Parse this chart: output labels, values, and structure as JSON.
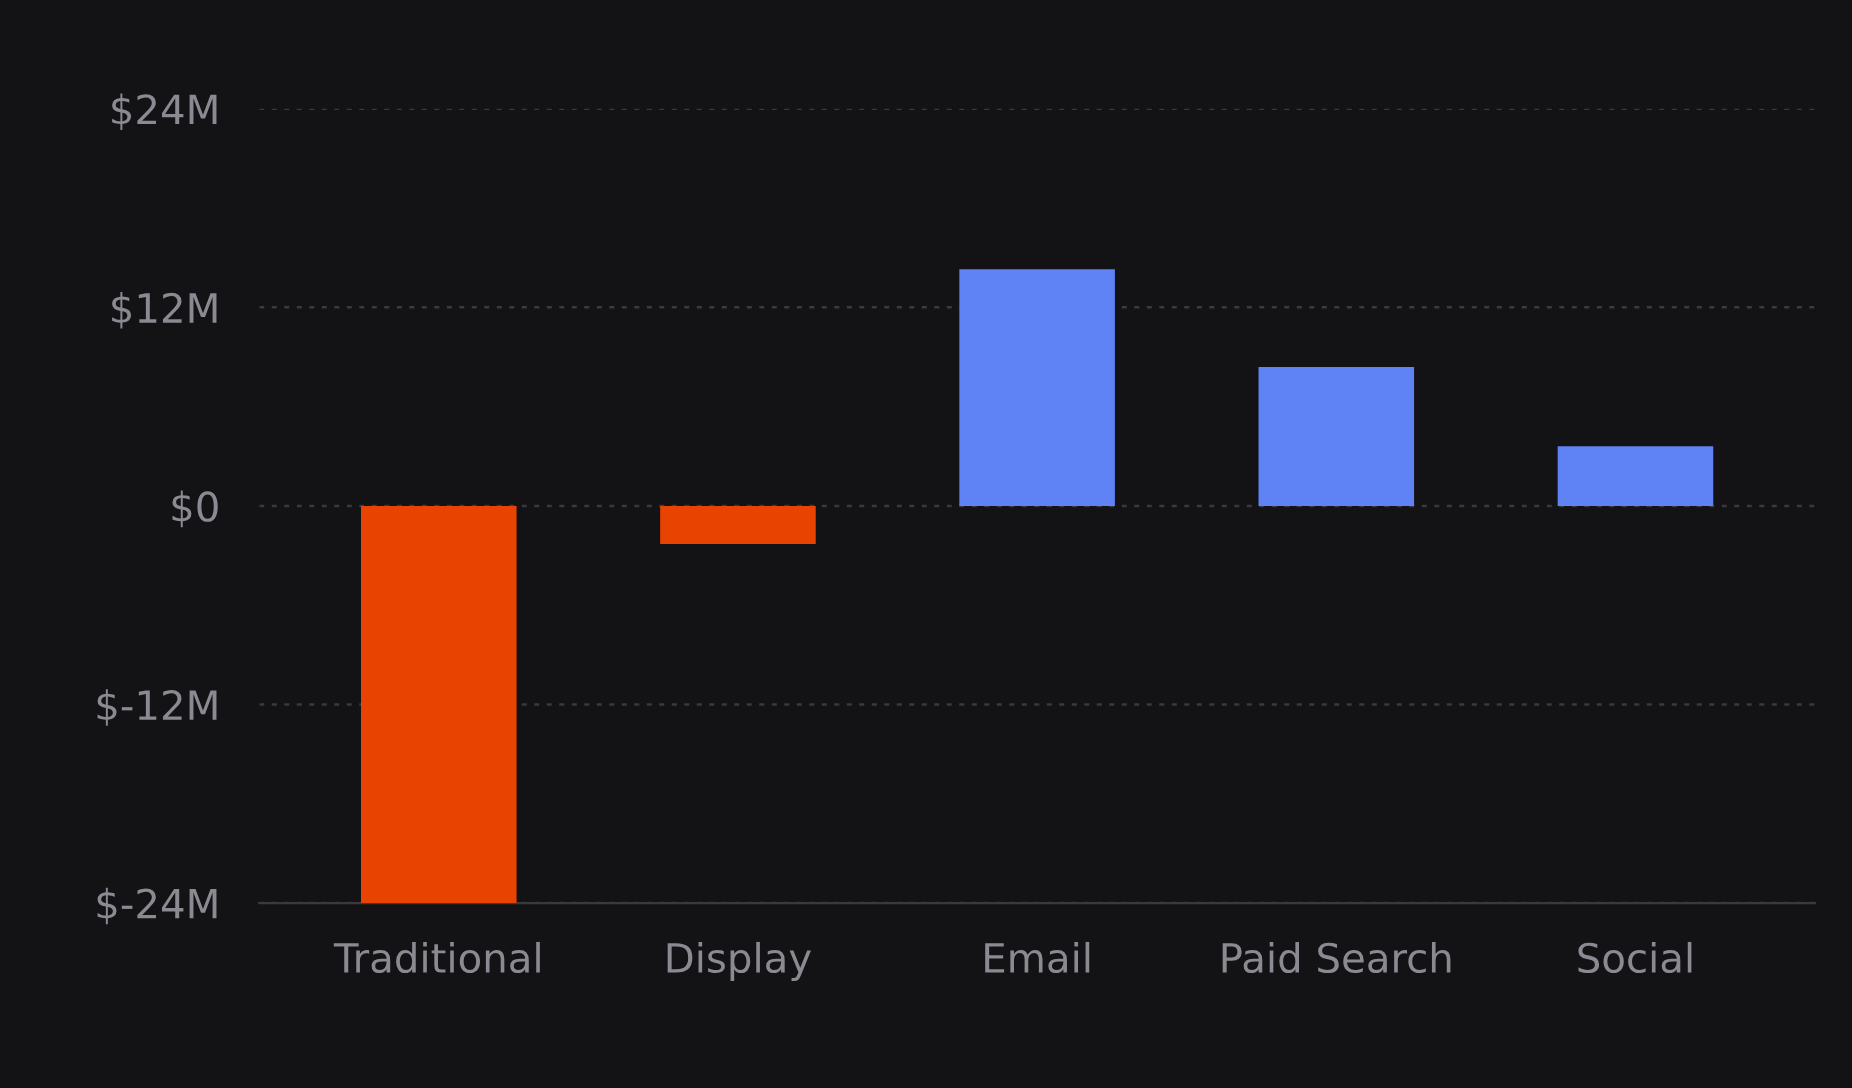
{
  "chart_data": {
    "type": "bar",
    "categories": [
      "Traditional",
      "Display",
      "Email",
      "Paid Search",
      "Social"
    ],
    "values": [
      -24,
      -2.3,
      14.3,
      8.4,
      3.6
    ],
    "colors": [
      "#e84300",
      "#e84300",
      "#5f82f5",
      "#5f82f5",
      "#5f82f5"
    ],
    "ylim": [
      -24,
      24
    ],
    "yticks": [
      {
        "value": -24,
        "label": "$-24M"
      },
      {
        "value": -12,
        "label": "$-12M"
      },
      {
        "value": 0,
        "label": "$0"
      },
      {
        "value": 12,
        "label": "$12M"
      },
      {
        "value": 24,
        "label": "$24M"
      }
    ],
    "grid": "y"
  }
}
